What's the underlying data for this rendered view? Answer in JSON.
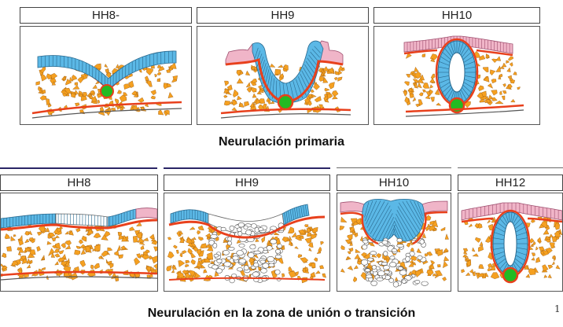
{
  "top_row": {
    "panels": [
      {
        "label": "HH8-"
      },
      {
        "label": "HH9"
      },
      {
        "label": "HH10"
      }
    ],
    "caption": "Neurulación primaria"
  },
  "bottom_row": {
    "panels": [
      {
        "label": "HH8"
      },
      {
        "label": "HH9"
      },
      {
        "label": "HH10"
      },
      {
        "label": "HH12"
      }
    ],
    "caption": "Neurulación en la zona de unión o transición"
  },
  "page_number": "1",
  "colors": {
    "neuroepithelium": "#5bb8e6",
    "epidermis": "#f0b5c8",
    "basement_membrane": "#e8401c",
    "mesenchyme_cells": "#f5a020",
    "notochord": "#22bb22",
    "white_cells": "#ffffff",
    "frame_border": "#555555",
    "rule_color": "#2a2566"
  }
}
